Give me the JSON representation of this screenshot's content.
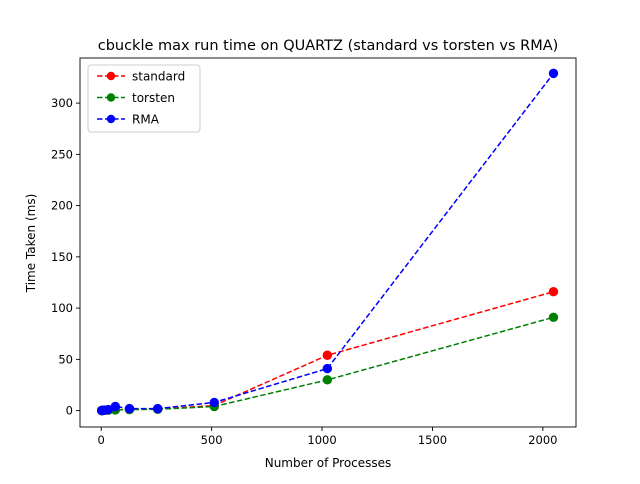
{
  "chart_data": {
    "type": "line",
    "title": "cbuckle max run time on QUARTZ (standard vs torsten vs RMA)",
    "xlabel": "Number of Processes",
    "ylabel": "Time Taken (ms)",
    "xlim": [
      -96,
      2150
    ],
    "ylim": [
      -16,
      344
    ],
    "xticks": [
      0,
      500,
      1000,
      1500,
      2000
    ],
    "yticks": [
      0,
      50,
      100,
      150,
      200,
      250,
      300
    ],
    "grid": false,
    "legend_position": "upper left",
    "x": [
      2,
      4,
      8,
      16,
      32,
      64,
      128,
      256,
      512,
      1024,
      2048
    ],
    "series": [
      {
        "name": "standard",
        "color": "#ff0000",
        "line_style": "dashed",
        "marker": "circle",
        "values": [
          0.1,
          0.1,
          0.2,
          0.3,
          0.5,
          0.8,
          1.2,
          1.5,
          5,
          54,
          116
        ]
      },
      {
        "name": "torsten",
        "color": "#008000",
        "line_style": "dashed",
        "marker": "circle",
        "values": [
          0.1,
          0.1,
          0.2,
          0.3,
          0.4,
          0.6,
          1.0,
          1.3,
          4,
          30,
          91
        ]
      },
      {
        "name": "RMA",
        "color": "#0000ff",
        "line_style": "dashed",
        "marker": "circle",
        "values": [
          0.1,
          0.2,
          0.3,
          0.5,
          1,
          4,
          2,
          2,
          8,
          41,
          329
        ]
      }
    ]
  }
}
